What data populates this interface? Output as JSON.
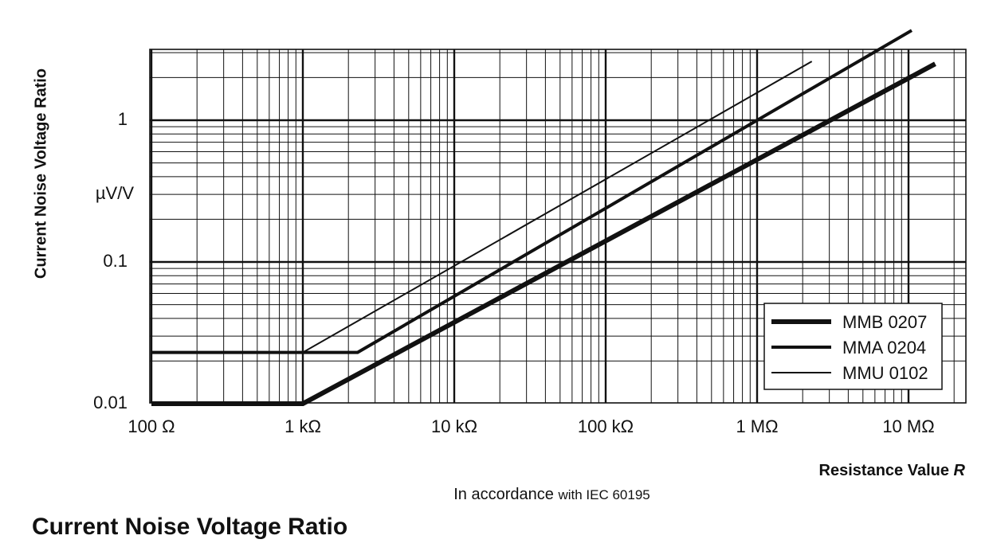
{
  "chart_data": {
    "type": "line",
    "title": "Current Noise Voltage Ratio",
    "ylabel": "Current Noise Voltage Ratio",
    "yunit": "µV/V",
    "xlabel_text": "Resistance Value",
    "xlabel_var": "R",
    "note_main": "In accordance",
    "note_small": "with IEC 60195",
    "xscale": "log",
    "yscale": "log",
    "xlim": [
      100,
      20000000
    ],
    "ylim": [
      0.01,
      5
    ],
    "grid": true,
    "legend_position": "bottom-right",
    "x_ticks": [
      {
        "value": 100,
        "label": "100 Ω"
      },
      {
        "value": 1000,
        "label": "1 kΩ"
      },
      {
        "value": 10000,
        "label": "10 kΩ"
      },
      {
        "value": 100000,
        "label": "100 kΩ"
      },
      {
        "value": 1000000,
        "label": "1 MΩ"
      },
      {
        "value": 10000000,
        "label": "10 MΩ"
      }
    ],
    "y_ticks": [
      {
        "value": 0.01,
        "label": "0.01"
      },
      {
        "value": 0.1,
        "label": "0.1"
      },
      {
        "value": 1,
        "label": "1"
      }
    ],
    "series": [
      {
        "name": "MMB 0207",
        "weight": "heavy",
        "x": [
          100,
          1000,
          15000000
        ],
        "y": [
          0.01,
          0.01,
          2.5
        ]
      },
      {
        "name": "MMA 0204",
        "weight": "medium",
        "x": [
          100,
          2300,
          10500000
        ],
        "y": [
          0.023,
          0.023,
          4.3
        ]
      },
      {
        "name": "MMU 0102",
        "weight": "thin",
        "x": [
          1000,
          2300000
        ],
        "y": [
          0.023,
          2.6
        ]
      }
    ]
  }
}
